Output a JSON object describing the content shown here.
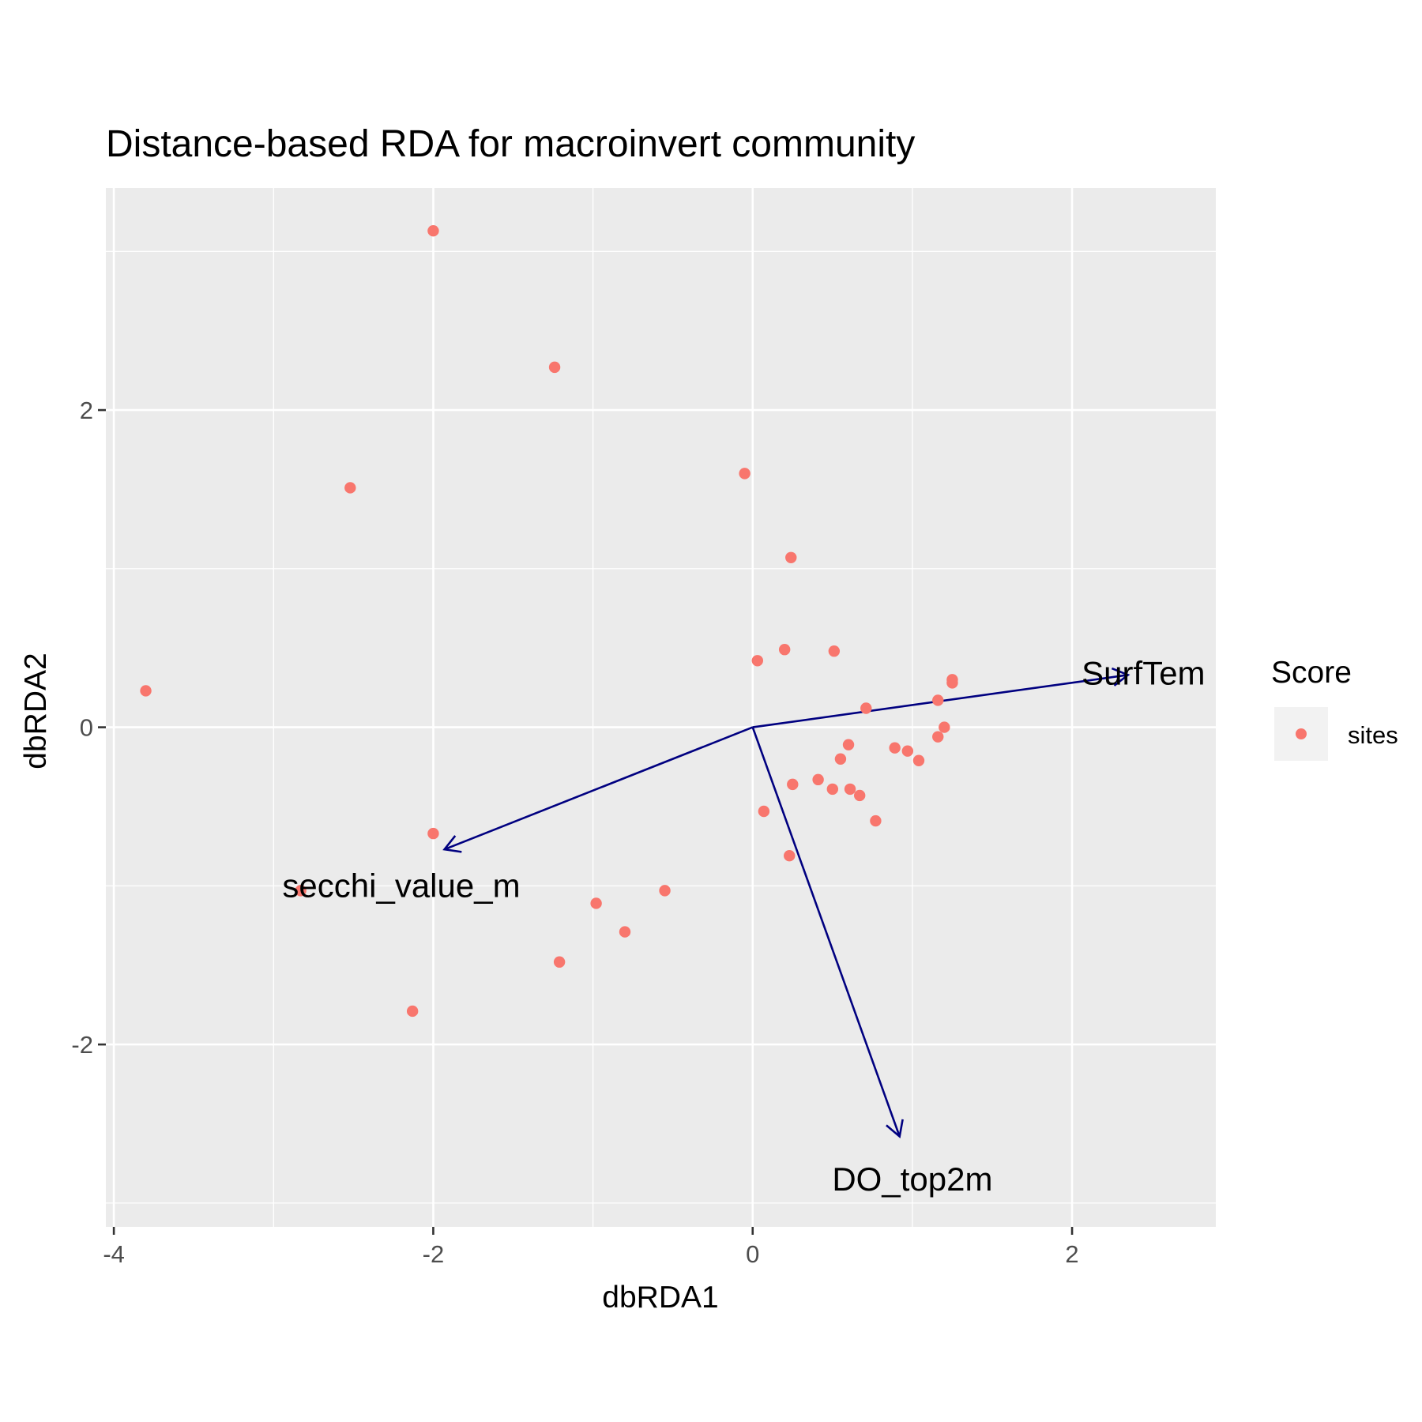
{
  "chart_data": {
    "type": "scatter",
    "title": "Distance-based RDA for macroinvert community",
    "xlabel": "dbRDA1",
    "ylabel": "dbRDA2",
    "xlim": [
      -4.05,
      2.9
    ],
    "ylim": [
      -3.15,
      3.4
    ],
    "x_ticks": [
      -4,
      -2,
      0,
      2
    ],
    "y_ticks": [
      -2,
      0,
      2
    ],
    "x_tick_labels": [
      "-4",
      "-2",
      "0",
      "2"
    ],
    "y_tick_labels": [
      "-2",
      "0",
      "2"
    ],
    "grid": true,
    "legend": {
      "title": "Score",
      "position": "right",
      "entries": [
        {
          "label": "sites",
          "color": "#F8766D"
        }
      ]
    },
    "series": [
      {
        "name": "sites",
        "color": "#F8766D",
        "points": [
          [
            -2.0,
            3.13
          ],
          [
            -1.24,
            2.27
          ],
          [
            -2.52,
            1.51
          ],
          [
            -3.8,
            0.23
          ],
          [
            -0.05,
            1.6
          ],
          [
            0.24,
            1.07
          ],
          [
            0.03,
            0.42
          ],
          [
            0.2,
            0.49
          ],
          [
            0.51,
            0.48
          ],
          [
            1.25,
            0.3
          ],
          [
            1.25,
            0.28
          ],
          [
            1.16,
            0.17
          ],
          [
            0.71,
            0.12
          ],
          [
            1.2,
            0.0
          ],
          [
            1.16,
            -0.06
          ],
          [
            0.6,
            -0.11
          ],
          [
            0.89,
            -0.13
          ],
          [
            0.97,
            -0.15
          ],
          [
            1.04,
            -0.21
          ],
          [
            0.55,
            -0.2
          ],
          [
            0.41,
            -0.33
          ],
          [
            0.25,
            -0.36
          ],
          [
            0.5,
            -0.39
          ],
          [
            0.61,
            -0.39
          ],
          [
            0.67,
            -0.43
          ],
          [
            0.07,
            -0.53
          ],
          [
            0.77,
            -0.59
          ],
          [
            0.23,
            -0.81
          ],
          [
            -2.0,
            -0.67
          ],
          [
            -2.83,
            -1.03
          ],
          [
            -0.55,
            -1.03
          ],
          [
            -0.98,
            -1.11
          ],
          [
            -0.8,
            -1.29
          ],
          [
            -1.21,
            -1.48
          ],
          [
            -2.13,
            -1.79
          ]
        ]
      }
    ],
    "arrows": [
      {
        "label": "SurfTem",
        "x": 2.35,
        "y": 0.33
      },
      {
        "label": "secchi_value_m",
        "x": -1.93,
        "y": -0.77
      },
      {
        "label": "DO_top2m",
        "x": 0.92,
        "y": -2.58
      }
    ],
    "colors": {
      "panel_background": "#EBEBEB",
      "grid": "#FFFFFF",
      "arrow": "#000080",
      "points": "#F8766D",
      "legend_key_background": "#F2F2F2"
    }
  }
}
